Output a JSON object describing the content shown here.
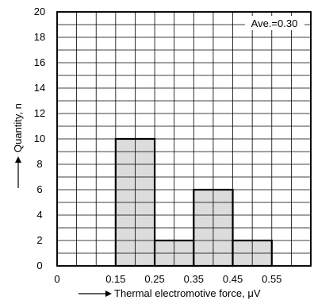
{
  "chart_data": {
    "type": "bar",
    "x": [
      0,
      0.15,
      0.25,
      0.35,
      0.45,
      0.55
    ],
    "bins": [
      {
        "start": 0.15,
        "end": 0.25,
        "count": 10
      },
      {
        "start": 0.25,
        "end": 0.35,
        "count": 2
      },
      {
        "start": 0.35,
        "end": 0.45,
        "count": 6
      },
      {
        "start": 0.45,
        "end": 0.55,
        "count": 2
      }
    ],
    "xlim": [
      0,
      0.65
    ],
    "ylim": [
      0,
      20
    ],
    "xticks": [
      "0",
      "0.15",
      "0.25",
      "0.35",
      "0.45",
      "0.55"
    ],
    "yticks": [
      "0",
      "2",
      "4",
      "6",
      "8",
      "10",
      "12",
      "14",
      "16",
      "18",
      "20"
    ],
    "xlabel": "Thermal electromotive force, μV",
    "ylabel": "Quantity, n",
    "grid": true,
    "annotation": "Ave.=0.30",
    "colors": {
      "bar_fill": "#dcdcdc",
      "bar_stroke": "#000000",
      "grid": "#000000",
      "text": "#000000"
    }
  }
}
